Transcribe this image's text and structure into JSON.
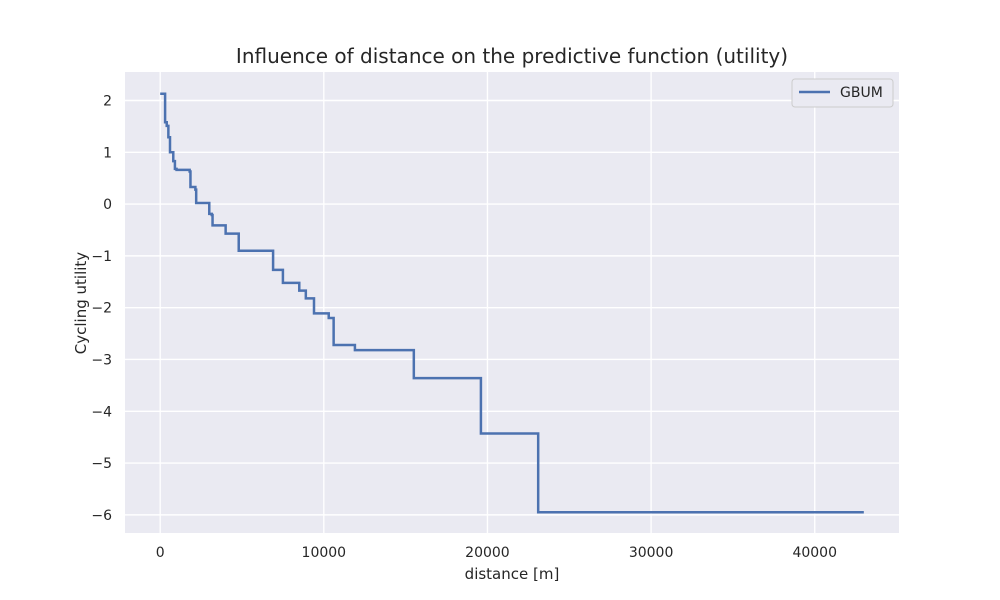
{
  "chart_data": {
    "type": "line",
    "title": "Influence of distance on the predictive function (utility)",
    "xlabel": "distance [m]",
    "ylabel": "Cycling utility",
    "xlim": [
      -2150,
      45150
    ],
    "ylim": [
      -6.35,
      2.55
    ],
    "x_ticks": [
      0,
      10000,
      20000,
      30000,
      40000
    ],
    "x_tick_labels": [
      "0",
      "10000",
      "20000",
      "30000",
      "40000"
    ],
    "y_ticks": [
      2,
      1,
      0,
      -1,
      -2,
      -3,
      -4,
      -5,
      -6
    ],
    "y_tick_labels": [
      "2",
      "1",
      "0",
      "−1",
      "−2",
      "−3",
      "−4",
      "−5",
      "−6"
    ],
    "grid": true,
    "legend": {
      "position": "top-right"
    },
    "series": [
      {
        "name": "GBUM",
        "color": "#4c72b0",
        "step": "post",
        "x": [
          0,
          300,
          400,
          500,
          600,
          800,
          900,
          1000,
          1800,
          1850,
          2150,
          2200,
          3000,
          3150,
          3200,
          4000,
          4800,
          6900,
          7500,
          8500,
          8900,
          9400,
          10300,
          10600,
          11900,
          15500,
          19600,
          23100,
          43000
        ],
        "values": [
          2.13,
          1.58,
          1.51,
          1.29,
          1.0,
          0.83,
          0.68,
          0.66,
          0.63,
          0.33,
          0.28,
          0.02,
          -0.19,
          -0.21,
          -0.41,
          -0.57,
          -0.9,
          -1.27,
          -1.52,
          -1.67,
          -1.82,
          -2.11,
          -2.2,
          -2.72,
          -2.82,
          -3.36,
          -4.43,
          -5.95,
          -5.95
        ]
      }
    ]
  }
}
